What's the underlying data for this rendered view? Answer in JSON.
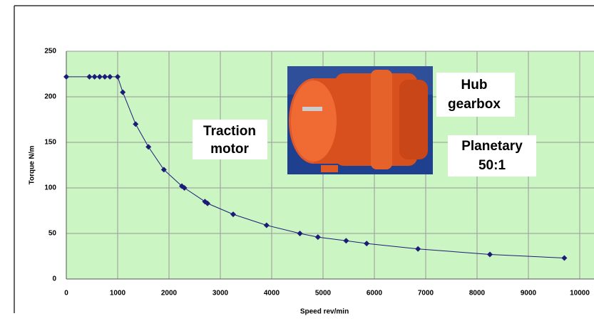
{
  "chart_data": {
    "type": "line",
    "x_label": "Speed rev/min",
    "y_label": "Torque N/m",
    "annotations": [
      [
        "Traction",
        "motor"
      ],
      [
        "Hub",
        "gearbox"
      ],
      [
        "Planetary",
        "50:1"
      ]
    ],
    "series": [
      {
        "color": "#1c1c78",
        "x": [
          0,
          450,
          550,
          650,
          750,
          850,
          1000,
          1100,
          1350,
          1600,
          1900,
          2250,
          2300,
          2700,
          2750,
          3250,
          3900,
          4550,
          4900,
          5450,
          5850,
          6850,
          8250,
          9700
        ],
        "values": [
          222,
          222,
          222,
          222,
          222,
          222,
          222,
          205,
          170,
          145,
          120,
          102,
          100,
          85,
          83,
          71,
          59,
          50,
          46,
          42,
          39,
          33,
          27,
          23
        ]
      }
    ],
    "xlim": [
      0,
      10000
    ],
    "xticks": [
      0,
      1000,
      2000,
      3000,
      4000,
      5000,
      6000,
      7000,
      8000,
      9000,
      10000
    ],
    "ylim": [
      0,
      250
    ],
    "yticks": [
      0,
      50,
      100,
      150,
      200,
      250
    ],
    "grid": true,
    "background": "#ccf5c4"
  }
}
